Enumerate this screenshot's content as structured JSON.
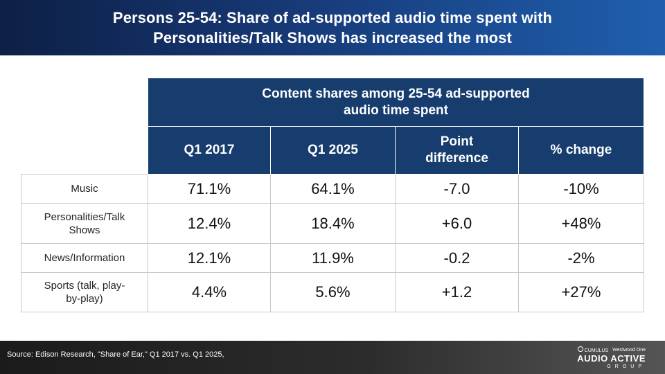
{
  "header": {
    "title_line1": "Persons 25-54: Share of ad-supported audio time spent with",
    "title_line2": "Personalities/Talk Shows has increased the most"
  },
  "table": {
    "group_header_line1": "Content shares among 25-54 ad-supported",
    "group_header_line2": "audio time spent",
    "columns": [
      "Q1 2017",
      "Q1 2025",
      "Point difference",
      "% change"
    ],
    "rows": [
      {
        "label": "Music",
        "values": [
          "71.1%",
          "64.1%",
          "-7.0",
          "-10%"
        ]
      },
      {
        "label": "Personalities/Talk Shows",
        "values": [
          "12.4%",
          "18.4%",
          "+6.0",
          "+48%"
        ]
      },
      {
        "label": "News/Information",
        "values": [
          "12.1%",
          "11.9%",
          "-0.2",
          "-2%"
        ]
      },
      {
        "label": "Sports (talk, play-by-play)",
        "values": [
          "4.4%",
          "5.6%",
          "+1.2",
          "+27%"
        ]
      }
    ]
  },
  "footer": {
    "source": "Source: Edison Research, \"Share of Ear,\" Q1 2017 vs. Q1 2025,",
    "logo_top_left": "CUMULUS",
    "logo_top_right": "Westwood One",
    "logo_main": "AUDIO ACTIVE",
    "logo_sub": "GROUP"
  },
  "colors": {
    "header_bg": "#173a78",
    "table_header_bg": "#173d6f",
    "footer_bg": "#2c2c2c"
  }
}
